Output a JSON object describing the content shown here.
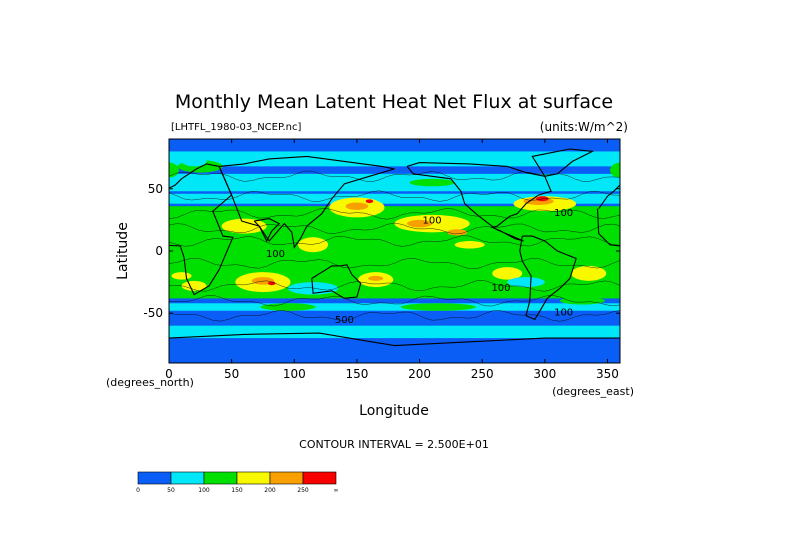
{
  "chart_data": {
    "type": "heatmap",
    "title": "Monthly Mean Latent Heat Net Flux at surface",
    "file_label": "[LHTFL_1980-03_NCEP.nc]",
    "units_label": "(units:W/m^2)",
    "xlabel": "Longitude",
    "ylabel": "Latitude",
    "x_unit_label": "(degrees_east)",
    "y_unit_label": "(degrees_north)",
    "xlim": [
      0,
      360
    ],
    "ylim": [
      -90,
      90
    ],
    "x_ticks": [
      0,
      50,
      100,
      150,
      200,
      250,
      300,
      350
    ],
    "y_ticks": [
      -50,
      0,
      50
    ],
    "contour_interval_text": "CONTOUR INTERVAL = 2.500E+01",
    "colorbar": {
      "levels": [
        "0",
        "50",
        "100",
        "150",
        "200",
        "250",
        "∞"
      ],
      "colors": [
        "#0a5df5",
        "#00e8f8",
        "#00e000",
        "#f8f800",
        "#f8a000",
        "#f80000"
      ]
    },
    "contour_labels": [
      {
        "text": "100",
        "lon": 210,
        "lat": 22
      },
      {
        "text": "100",
        "lon": 315,
        "lat": 28
      },
      {
        "text": "100",
        "lon": 85,
        "lat": -5
      },
      {
        "text": "100",
        "lon": 265,
        "lat": -32
      },
      {
        "text": "100",
        "lon": 315,
        "lat": -52
      },
      {
        "text": "500",
        "lon": 140,
        "lat": -58
      }
    ]
  }
}
